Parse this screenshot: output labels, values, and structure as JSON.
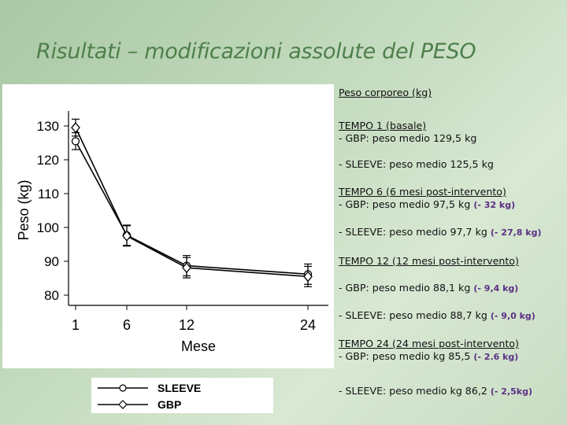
{
  "slide": {
    "title": "Risultati – modificazioni assolute del PESO"
  },
  "chart_data": {
    "type": "line",
    "x": [
      1,
      6,
      12,
      24
    ],
    "xlabel": "Mese",
    "ylabel": "Peso (kg)",
    "xticks": [
      "1",
      "6",
      "12",
      "24"
    ],
    "yticks": [
      "80",
      "90",
      "100",
      "110",
      "120",
      "130"
    ],
    "ylim": [
      77,
      134
    ],
    "grid": false,
    "legend_placement": "bottom",
    "series": [
      {
        "name": "SLEEVE",
        "marker": "circle",
        "values": [
          125.5,
          97.7,
          88.7,
          86.2
        ],
        "err": [
          2.5,
          3.0,
          3.0,
          3.0
        ]
      },
      {
        "name": "GBP",
        "marker": "diamond",
        "values": [
          129.5,
          97.5,
          88.1,
          85.5
        ],
        "err": [
          2.5,
          3.0,
          3.0,
          3.0
        ]
      }
    ]
  },
  "notes": {
    "header": "Peso corporeo (kg)",
    "t1_title": "TEMPO 1 (basale)",
    "t1_gbp": "- GBP: peso medio 129,5 kg",
    "t1_sleeve": "- SLEEVE: peso medio 125,5 kg",
    "t6_title": "TEMPO 6 (6 mesi post-intervento)",
    "t6_gbp": "- GBP: peso medio 97,5 kg",
    "t6_gbp_delta": "(- 32 kg)",
    "t6_sleeve": "- SLEEVE: peso medio 97,7 kg",
    "t6_sleeve_delta": "(- 27,8 kg)",
    "t12_title": "TEMPO 12 (12 mesi post-intervento)",
    "t12_gbp": "- GBP: peso medio 88,1 kg",
    "t12_gbp_delta": "(- 9,4 kg)",
    "t12_sleeve": "- SLEEVE: peso medio 88,7 kg",
    "t12_sleeve_delta": "(- 9,0 kg)",
    "t24_title": "TEMPO 24 (24 mesi post-intervento)",
    "t24_gbp": "- GBP: peso medio  kg 85,5",
    "t24_gbp_delta": "(- 2.6 kg)",
    "t24_sleeve": "- SLEEVE: peso medio kg 86,2",
    "t24_sleeve_delta": "(- 2,5kg)"
  },
  "colors": {
    "title": "#4e7f4b",
    "delta": "#5a2f85",
    "background": "#c5dcc0",
    "ink": "#111111"
  }
}
